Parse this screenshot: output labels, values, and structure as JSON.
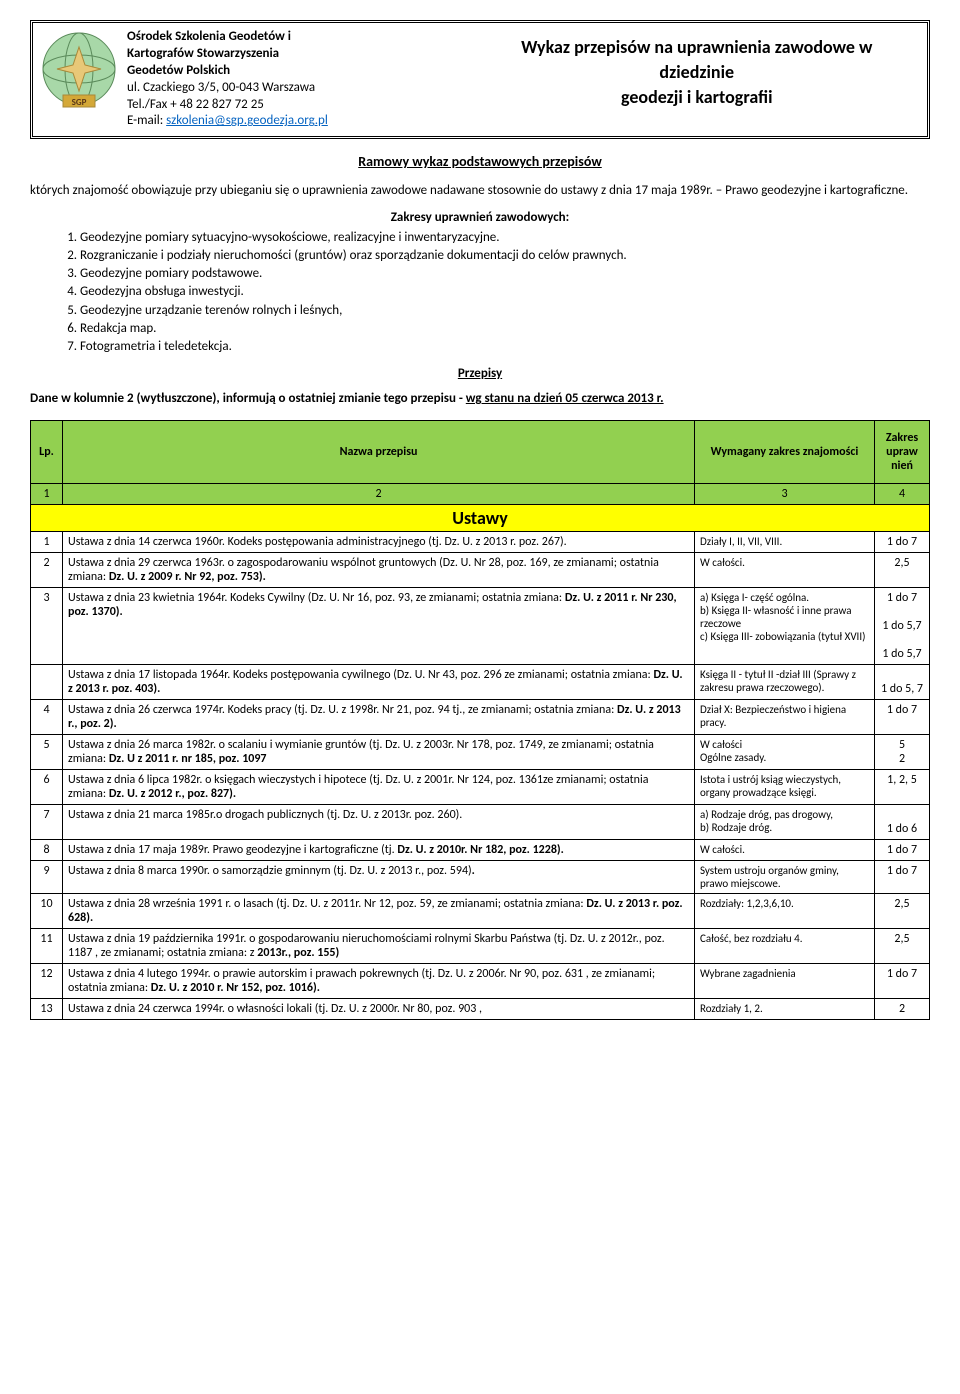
{
  "header": {
    "org_name_1": "Ośrodek Szkolenia Geodetów i",
    "org_name_2": "Kartografów Stowarzyszenia",
    "org_name_3": "Geodetów Polskich",
    "address": "ul. Czackiego 3/5,    00-043 Warszawa",
    "phone": "Tel./Fax + 48 22 827 72 25",
    "email_label": "E-mail: ",
    "email": "szkolenia@sgp.geodezja.org.pl",
    "title_1": "Wykaz przepisów  na uprawnienia zawodowe  w",
    "title_2": "dziedzinie",
    "title_3": "geodezji i kartografii"
  },
  "subtitle": "Ramowy  wykaz  podstawowych  przepisów",
  "intro": "których znajomość obowiązuje przy ubieganiu się o uprawnienia zawodowe nadawane stosownie do ustawy z dnia 17 maja 1989r. – Prawo geodezyjne i kartograficzne.",
  "zakresy_title": "Zakresy uprawnień zawodowych:",
  "zakresy": [
    "Geodezyjne pomiary sytuacyjno-wysokościowe, realizacyjne i inwentaryzacyjne.",
    "Rozgraniczanie i podziały nieruchomości (gruntów) oraz sporządzanie dokumentacji do celów prawnych.",
    "Geodezyjne pomiary podstawowe.",
    "Geodezyjna obsługa inwestycji.",
    "Geodezyjne urządzanie terenów rolnych i leśnych,",
    "Redakcja map.",
    "Fotogrametria i teledetekcja."
  ],
  "przepisy_title": "Przepisy",
  "note_pre": "Dane w kolumnie 2 (wytłuszczone), informują o ostatniej zmianie tego przepisu - ",
  "note_bold": "wg stanu na dzień 05 czerwca 2013 r.",
  "columns": {
    "lp": "Lp.",
    "name": "Nazwa przepisu",
    "scope": "Wymagany zakres znajomości",
    "range": "Zakres upraw nień"
  },
  "col_nums": [
    "1",
    "2",
    "3",
    "4"
  ],
  "section": "Ustawy",
  "rows": [
    {
      "lp": "1",
      "name": "Ustawa z dnia 14 czerwca 1960r. Kodeks postępowania administracyjnego (tj. Dz. U. z 2013 r.  poz. 267).",
      "scope": "Działy I, II, VII, VIII.",
      "range": "1 do 7"
    },
    {
      "lp": "2",
      "name": "Ustawa z dnia 29 czerwca 1963r. o zagospodarowaniu wspólnot gruntowych (Dz. U. Nr 28, poz. 169, ze zmianami; ostatnia zmiana: <b>Dz. U. z 2009 r. Nr 92, poz. 753).</b>",
      "scope": "W całości.",
      "range": "2,5"
    },
    {
      "lp": "3",
      "name": "Ustawa z dnia 23 kwietnia 1964r. Kodeks Cywilny (Dz. U. Nr 16, poz. 93, ze zmianami; ostatnia zmiana: <b>Dz. U. z 2011 r. Nr 230, poz. 1370).</b>",
      "scope": "a) Księga I- część ogólna.<br>b) Księga II- własność i inne prawa rzeczowe<br>c) Księga III- zobowiązania (tytuł XVII)",
      "range": "1 do 7<br><br>1 do 5,7<br><br>1 do 5,7"
    },
    {
      "lp": "",
      "name": "Ustawa z dnia 17 listopada 1964r. Kodeks postępowania cywilnego (Dz. U. Nr 43, poz. 296 ze zmianami; ostatnia zmiana: <b>Dz. U. z 2013 r. poz. 403).</b>",
      "scope": "Księga II - tytuł II -dział III (Sprawy z zakresu prawa rzeczowego).",
      "range": "<br>1 do 5, 7"
    },
    {
      "lp": "4",
      "name": "Ustawa z dnia 26 czerwca 1974r. Kodeks pracy (tj. Dz. U. z 1998r. Nr 21, poz. 94 tj., ze zmianami; ostatnia zmiana: <b>Dz. U. z 2013 r.,  poz. 2).</b>",
      "scope": "Dział X: Bezpieczeństwo i higiena pracy.",
      "range": "1 do 7"
    },
    {
      "lp": "5",
      "name": "Ustawa z dnia 26 marca 1982r. o scalaniu i wymianie gruntów (tj. Dz. U. z 2003r. Nr 178, poz. 1749, ze zmianami; ostatnia zmiana: <b>Dz. U z 2011 r. nr 185, poz. 1097</b>",
      "scope": "W całości<br>Ogólne zasady.",
      "range": "5<br>2"
    },
    {
      "lp": "6",
      "name": "Ustawa z dnia 6 lipca 1982r. o księgach wieczystych i hipotece (tj. Dz. U. z 2001r. Nr 124, poz. 1361ze zmianami; ostatnia zmiana: <b>Dz. U. z 2012 r., poz. 827).</b>",
      "scope": "Istota i ustrój ksiąg wieczystych, organy prowadzące księgi.",
      "range": "1, 2, 5"
    },
    {
      "lp": "7",
      "name": "Ustawa z dnia 21 marca 1985r.o drogach publicznych (tj. Dz. U. z 2013r. poz. 260).",
      "scope": "a) Rodzaje dróg, pas drogowy,<br>b) Rodzaje dróg.",
      "range": "<br>1 do 6"
    },
    {
      "lp": "8",
      "name": "Ustawa z dnia 17 maja 1989r. Prawo geodezyjne i kartograficzne (tj. <b>Dz. U. z 2010r. Nr 182, poz. 1228).</b>",
      "scope": "W całości.",
      "range": "1 do 7"
    },
    {
      "lp": "9",
      "name": "Ustawa z dnia 8 marca 1990r. o samorządzie gminnym (tj. Dz. U. z 2013 r., poz. 594)<b>.</b>",
      "scope": "System ustroju organów gminy, prawo miejscowe.",
      "range": "1 do 7"
    },
    {
      "lp": "10",
      "name": "Ustawa z dnia 28 września 1991 r. o lasach (tj. Dz. U. z 2011r. Nr 12, poz. 59, ze zmianami; ostatnia zmiana: <b>Dz. U. z 2013 r. poz. 628).</b>",
      "scope": "Rozdziały: 1,2,3,6,10.",
      "range": "2,5"
    },
    {
      "lp": "11",
      "name": "Ustawa z dnia 19 października 1991r. o gospodarowaniu nieruchomościami rolnymi Skarbu Państwa (tj. Dz. U. z 2012r., poz. 1187 , ze zmianami; ostatnia zmiana: z <b>2013r., poz. 155)</b>",
      "scope": "Całość, bez rozdziału 4.",
      "range": "2,5"
    },
    {
      "lp": "12",
      "name": "Ustawa z dnia 4 lutego 1994r. o prawie autorskim i prawach pokrewnych (tj. Dz. U. z 2006r. Nr 90, poz. 631 , ze zmianami; ostatnia zmiana: <b>Dz. U. z 2010 r. Nr 152, poz. 1016).</b>",
      "scope": "Wybrane zagadnienia",
      "range": "1 do 7"
    },
    {
      "lp": "13",
      "name": "Ustawa z dnia 24 czerwca 1994r. o własności lokali (tj. Dz. U. z 2000r. Nr 80, poz. 903 ,",
      "scope": "Rozdziały 1, 2.",
      "range": "2"
    }
  ],
  "colors": {
    "header_green": "#92d050",
    "section_yellow": "#ffff00",
    "link": "#0563c1"
  }
}
